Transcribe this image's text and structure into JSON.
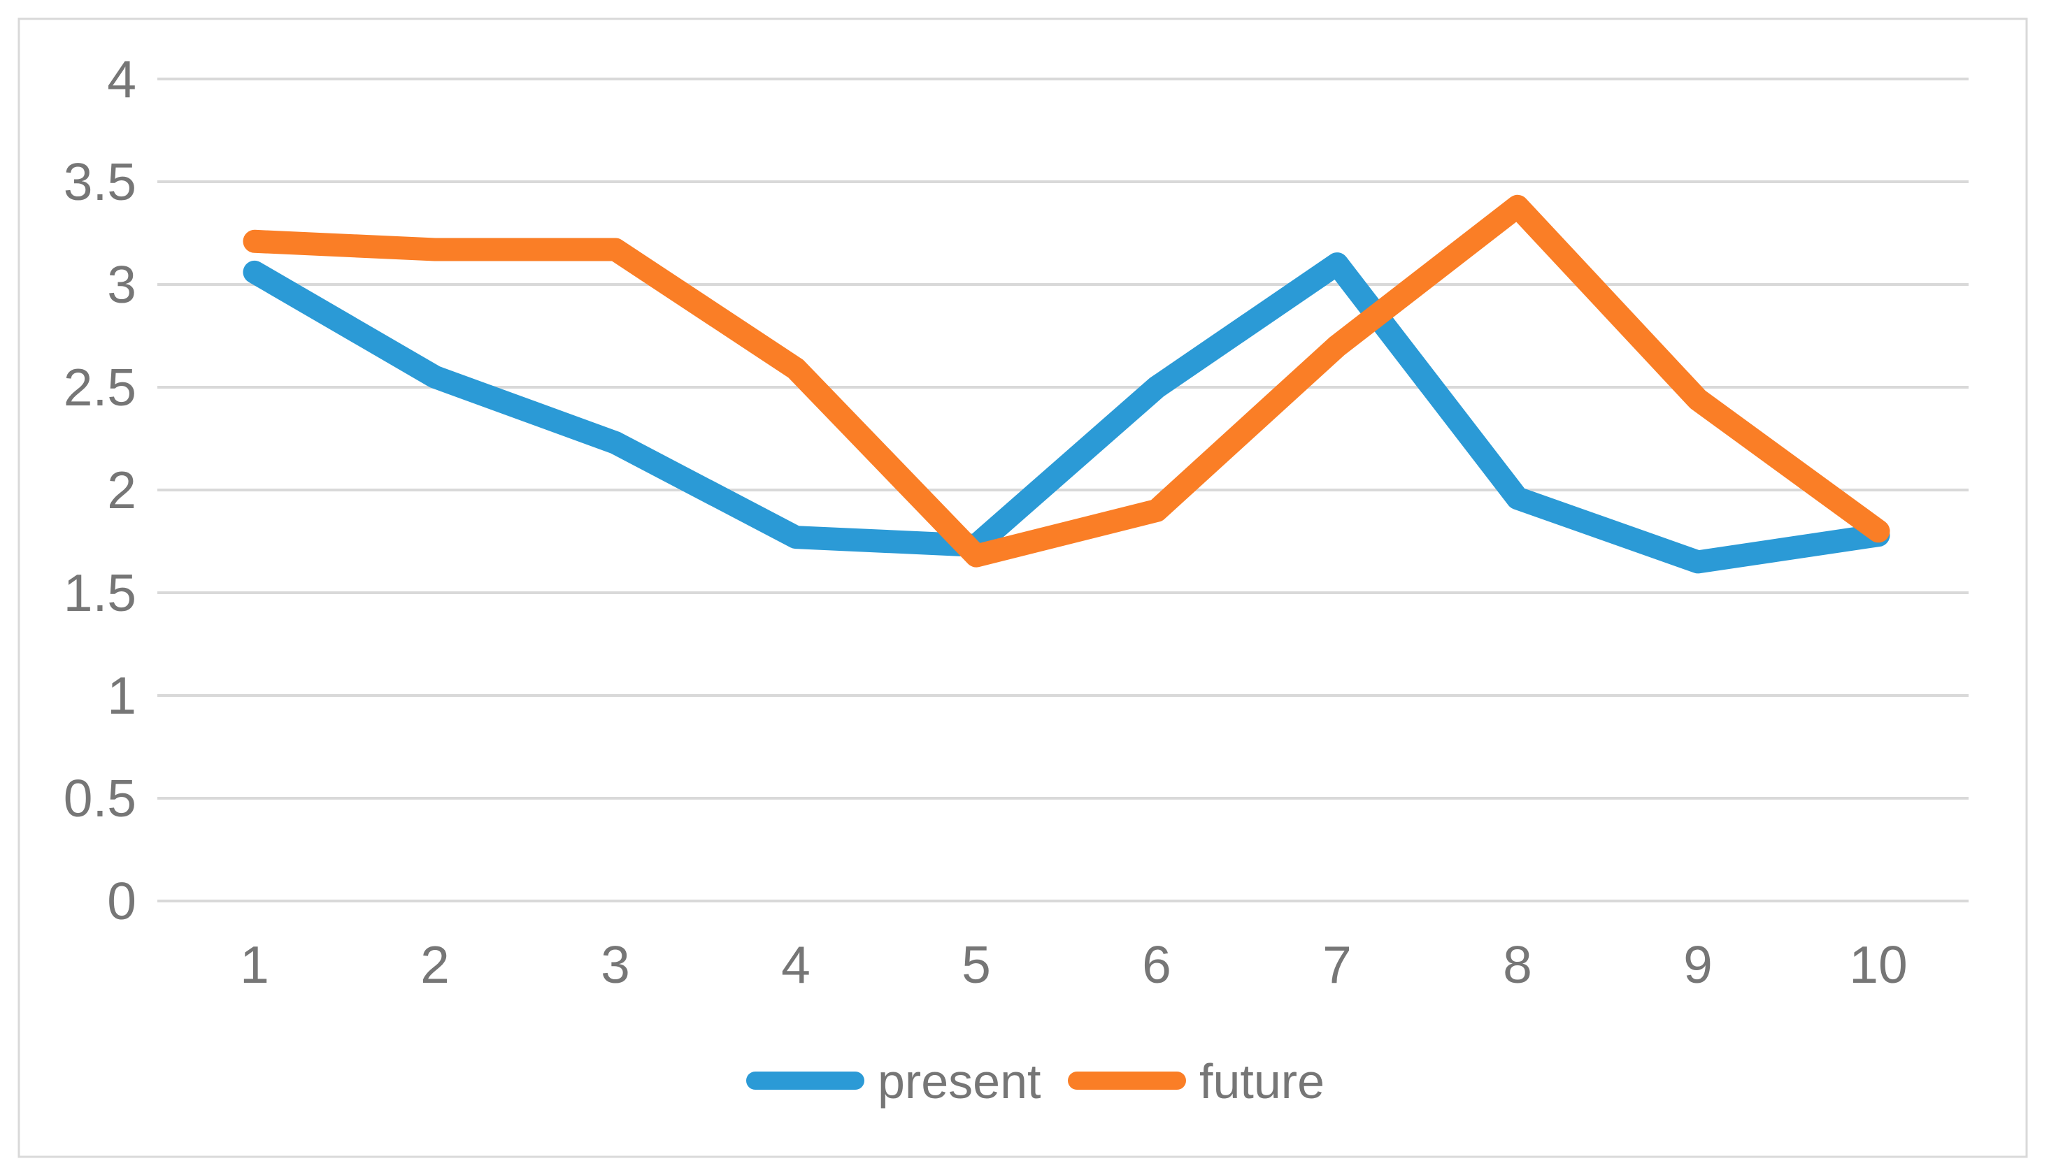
{
  "chart_data": {
    "type": "line",
    "title": "",
    "xlabel": "",
    "ylabel": "",
    "x_categories": [
      "1",
      "2",
      "3",
      "4",
      "5",
      "6",
      "7",
      "8",
      "9",
      "10"
    ],
    "series": [
      {
        "name": "present",
        "color": "#2B9AD6",
        "values": [
          3.06,
          2.55,
          2.23,
          1.77,
          1.73,
          2.5,
          3.1,
          1.96,
          1.65,
          1.78
        ]
      },
      {
        "name": "future",
        "color": "#FA7E26",
        "values": [
          3.21,
          3.17,
          3.17,
          2.59,
          1.68,
          1.9,
          2.7,
          3.38,
          2.44,
          1.8
        ]
      }
    ],
    "y_axis": {
      "min": 0,
      "max": 4,
      "step": 0.5,
      "tick_labels": [
        "0",
        "0.5",
        "1",
        "1.5",
        "2",
        "2.5",
        "3",
        "3.5",
        "4"
      ]
    },
    "grid": true,
    "legend_position": "bottom",
    "legend_labels": [
      "present",
      "future"
    ]
  },
  "style": {
    "background": "#FFFFFF",
    "gridline_color": "#D9D9D9",
    "border_color": "#D9D9D9",
    "label_color": "#767676"
  }
}
